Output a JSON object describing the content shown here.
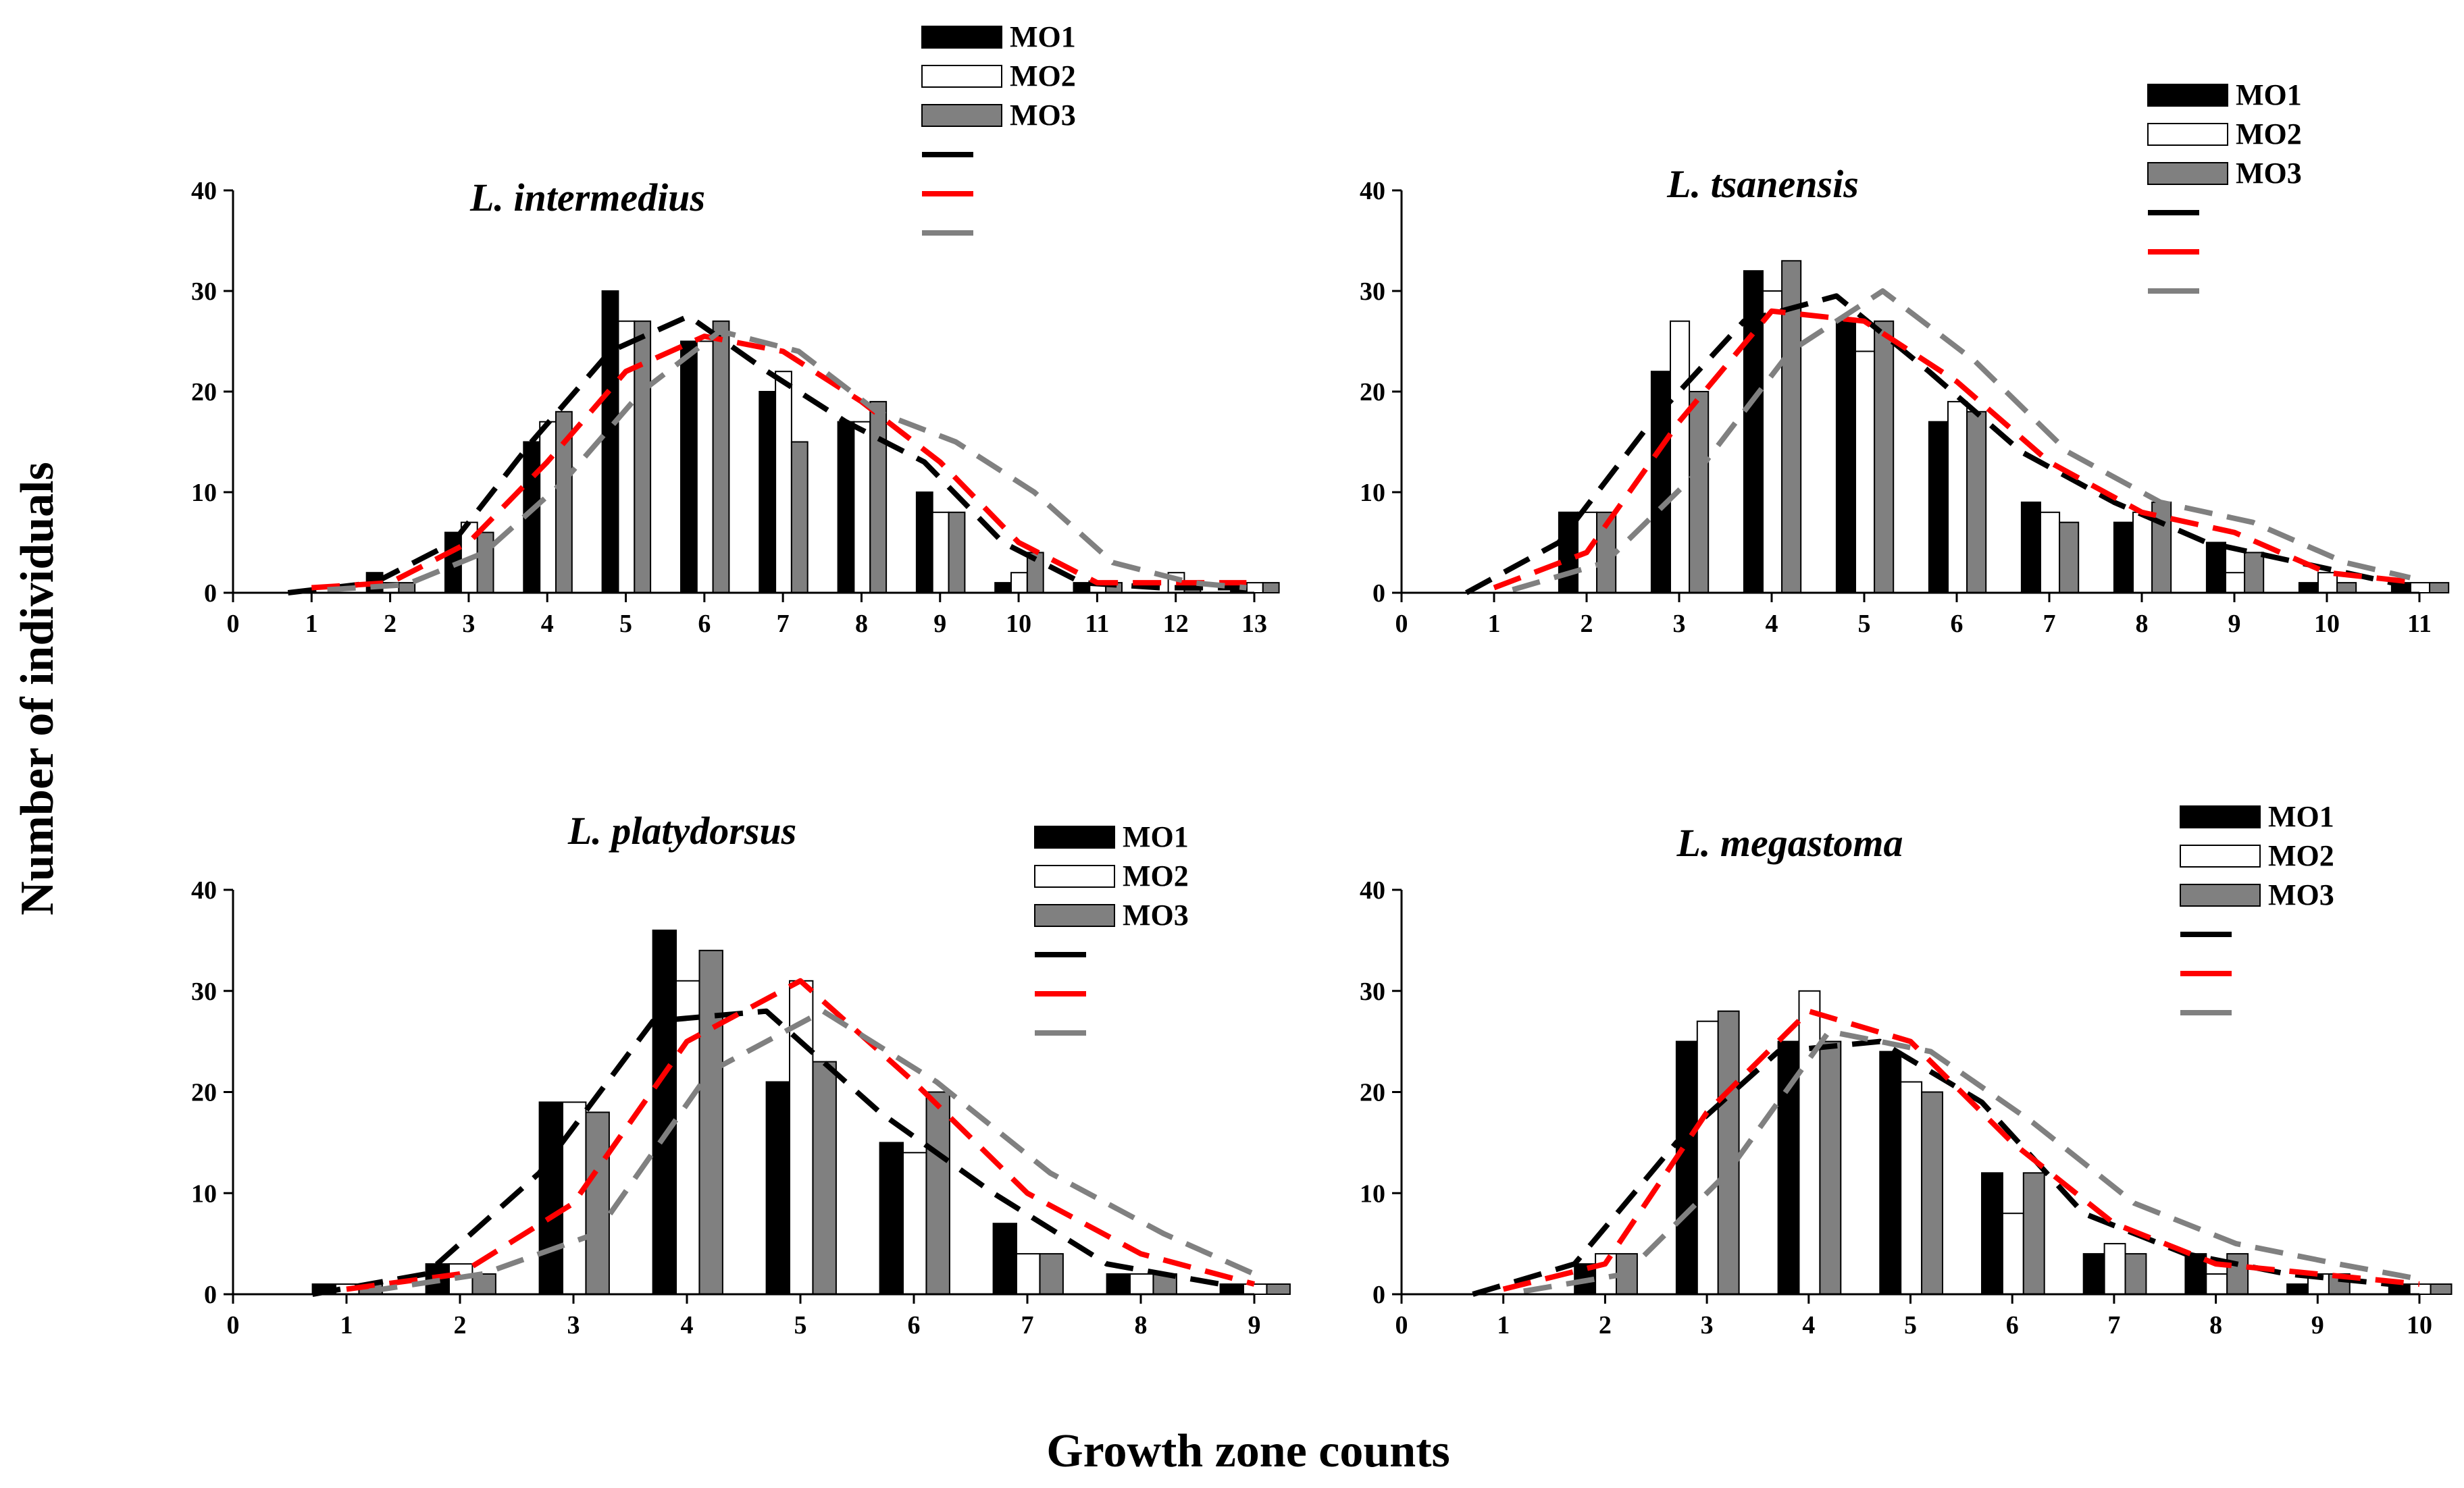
{
  "figure": {
    "ylabel": "Number of individuals",
    "xlabel": "Growth zone counts"
  },
  "colors": {
    "mo1": "#000000",
    "mo2": "#ffffff",
    "mo3": "#808080",
    "fit1": "#000000",
    "fit2": "#ff0000",
    "fit3": "#808080"
  },
  "chart_data": [
    {
      "type": "bar",
      "title": "L. intermedius",
      "xlim": [
        0,
        13
      ],
      "ylim": [
        0,
        40
      ],
      "xticks": [
        0,
        1,
        2,
        3,
        4,
        5,
        6,
        7,
        8,
        9,
        10,
        11,
        12,
        13
      ],
      "yticks": [
        0,
        10,
        20,
        30,
        40
      ],
      "categories": [
        1,
        2,
        3,
        4,
        5,
        6,
        7,
        8,
        9,
        10,
        11,
        12,
        13
      ],
      "series": [
        {
          "name": "MO1",
          "values": [
            0,
            2,
            6,
            15,
            30,
            25,
            20,
            17,
            10,
            1,
            1,
            0,
            1
          ]
        },
        {
          "name": "MO2",
          "values": [
            0,
            1,
            7,
            17,
            27,
            25,
            22,
            17,
            8,
            2,
            1,
            2,
            1
          ]
        },
        {
          "name": "MO3",
          "values": [
            0,
            1,
            6,
            18,
            27,
            27,
            15,
            19,
            8,
            4,
            1,
            1,
            1
          ]
        }
      ],
      "fits": [
        {
          "name": "MO1 fit",
          "x": [
            0.7,
            1.8,
            2.8,
            3.8,
            4.8,
            5.8,
            6.8,
            7.8,
            8.8,
            9.8,
            10.8,
            11.8,
            12.8
          ],
          "y": [
            0,
            1,
            5,
            15,
            24,
            27.5,
            22,
            17,
            13,
            5,
            1,
            0.5,
            0.5
          ]
        },
        {
          "name": "MO2 fit",
          "x": [
            1,
            2,
            3,
            4,
            5,
            6,
            7,
            8,
            9,
            10,
            11,
            12,
            12.9
          ],
          "y": [
            0.5,
            1,
            5,
            13,
            22,
            25.5,
            24,
            19,
            13,
            5,
            1,
            1,
            1
          ]
        },
        {
          "name": "MO3 fit",
          "x": [
            1.2,
            2.2,
            3.2,
            4.2,
            5.2,
            6.2,
            7.2,
            8.2,
            9.2,
            10.2,
            11.2,
            12.2,
            12.9
          ],
          "y": [
            0.3,
            0.8,
            4,
            11,
            20,
            26,
            24,
            18,
            15,
            10,
            3,
            1,
            0.5
          ]
        }
      ],
      "legend": [
        "MO1",
        "MO2",
        "MO3",
        "",
        "",
        ""
      ]
    },
    {
      "type": "bar",
      "title": "L. tsanensis",
      "xlim": [
        0,
        11
      ],
      "ylim": [
        0,
        40
      ],
      "xticks": [
        0,
        1,
        2,
        3,
        4,
        5,
        6,
        7,
        8,
        9,
        10,
        11
      ],
      "yticks": [
        0,
        10,
        20,
        30,
        40
      ],
      "categories": [
        1,
        2,
        3,
        4,
        5,
        6,
        7,
        8,
        9,
        10,
        11
      ],
      "series": [
        {
          "name": "MO1",
          "values": [
            0,
            8,
            22,
            32,
            27,
            17,
            9,
            7,
            5,
            1,
            1
          ]
        },
        {
          "name": "MO2",
          "values": [
            0,
            8,
            27,
            30,
            24,
            19,
            8,
            8,
            2,
            2,
            1
          ]
        },
        {
          "name": "MO3",
          "values": [
            0,
            8,
            20,
            33,
            27,
            18,
            7,
            9,
            4,
            1,
            1
          ]
        }
      ],
      "fits": [
        {
          "name": "MO1 fit",
          "x": [
            0.7,
            1.7,
            2.7,
            3.7,
            4.7,
            5.7,
            6.7,
            7.7,
            8.7,
            9.7,
            10.7
          ],
          "y": [
            0,
            5,
            17,
            27,
            29.5,
            22,
            14,
            9,
            5,
            3,
            1
          ]
        },
        {
          "name": "MO2 fit",
          "x": [
            1,
            2,
            3,
            4,
            5,
            6,
            7,
            8,
            9,
            10,
            11
          ],
          "y": [
            0.5,
            4,
            17,
            28,
            27,
            21,
            13,
            8,
            6,
            2,
            1
          ]
        },
        {
          "name": "MO3 fit",
          "x": [
            1.2,
            2.2,
            3.2,
            4.2,
            5.2,
            6.2,
            7.2,
            8.2,
            9.2,
            10.2,
            10.9
          ],
          "y": [
            0.3,
            3,
            12,
            24,
            30,
            23,
            14,
            9,
            7,
            3,
            1.5
          ]
        }
      ],
      "legend": [
        "MO1",
        "MO2",
        "MO3",
        "",
        "",
        ""
      ]
    },
    {
      "type": "bar",
      "title": "L. platydorsus",
      "xlim": [
        0,
        9
      ],
      "ylim": [
        0,
        40
      ],
      "xticks": [
        0,
        1,
        2,
        3,
        4,
        5,
        6,
        7,
        8,
        9
      ],
      "yticks": [
        0,
        10,
        20,
        30,
        40
      ],
      "categories": [
        1,
        2,
        3,
        4,
        5,
        6,
        7,
        8,
        9
      ],
      "series": [
        {
          "name": "MO1",
          "values": [
            1,
            3,
            19,
            36,
            21,
            15,
            7,
            2,
            1
          ]
        },
        {
          "name": "MO2",
          "values": [
            1,
            3,
            19,
            31,
            31,
            14,
            4,
            2,
            1
          ]
        },
        {
          "name": "MO3",
          "values": [
            1,
            2,
            18,
            34,
            23,
            20,
            4,
            2,
            1
          ]
        }
      ],
      "fits": [
        {
          "name": "MO1 fit",
          "x": [
            0.7,
            1.7,
            2.7,
            3.7,
            4.7,
            5.7,
            6.7,
            7.7,
            8.7
          ],
          "y": [
            0,
            2,
            12,
            27,
            28,
            18,
            10,
            3,
            1
          ]
        },
        {
          "name": "MO2 fit",
          "x": [
            1,
            2,
            3,
            4,
            5,
            6,
            7,
            8,
            9
          ],
          "y": [
            0.5,
            2,
            9,
            25,
            31,
            21,
            10,
            4,
            1
          ]
        },
        {
          "name": "MO3 fit",
          "x": [
            1.2,
            2.2,
            3.2,
            4.2,
            5.2,
            6.2,
            7.2,
            8.2,
            9
          ],
          "y": [
            0.3,
            2,
            6,
            22,
            28,
            21,
            12,
            6,
            2
          ]
        }
      ],
      "legend": [
        "MO1",
        "MO2",
        "MO3",
        "",
        "",
        ""
      ]
    },
    {
      "type": "bar",
      "title": "L. megastoma",
      "xlim": [
        0,
        10
      ],
      "ylim": [
        0,
        40
      ],
      "xticks": [
        0,
        1,
        2,
        3,
        4,
        5,
        6,
        7,
        8,
        9,
        10
      ],
      "yticks": [
        0,
        10,
        20,
        30,
        40
      ],
      "categories": [
        1,
        2,
        3,
        4,
        5,
        6,
        7,
        8,
        9,
        10
      ],
      "series": [
        {
          "name": "MO1",
          "values": [
            0,
            3,
            25,
            25,
            24,
            12,
            4,
            4,
            1,
            1
          ]
        },
        {
          "name": "MO2",
          "values": [
            0,
            4,
            27,
            30,
            21,
            8,
            5,
            2,
            2,
            1
          ]
        },
        {
          "name": "MO3",
          "values": [
            0,
            4,
            28,
            25,
            20,
            12,
            4,
            4,
            2,
            1
          ]
        }
      ],
      "fits": [
        {
          "name": "MO1 fit",
          "x": [
            0.7,
            1.7,
            2.7,
            3.7,
            4.7,
            5.7,
            6.7,
            7.7,
            8.7,
            9.7
          ],
          "y": [
            0,
            3,
            15,
            24,
            25,
            19,
            8,
            4,
            2,
            1
          ]
        },
        {
          "name": "MO2 fit",
          "x": [
            1,
            2,
            3,
            4,
            5,
            6,
            7,
            8,
            9,
            10
          ],
          "y": [
            0.5,
            3,
            18,
            28,
            25,
            15,
            7,
            3,
            2,
            1
          ]
        },
        {
          "name": "MO3 fit",
          "x": [
            1.2,
            2.2,
            3.2,
            4.2,
            5.2,
            6.2,
            7.2,
            8.2,
            9.2,
            10
          ],
          "y": [
            0.3,
            2,
            12,
            26,
            24,
            17,
            9,
            5,
            3,
            1.5
          ]
        }
      ],
      "legend": [
        "MO1",
        "MO2",
        "MO3",
        "",
        "",
        ""
      ]
    }
  ]
}
